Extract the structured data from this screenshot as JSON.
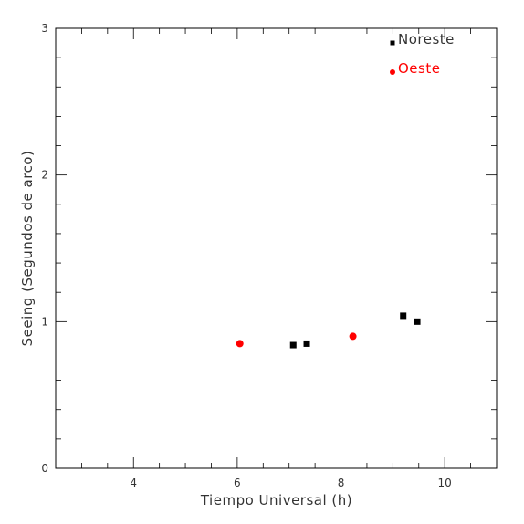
{
  "chart_data": {
    "type": "scatter",
    "title": "",
    "xlabel": "Tiempo Universal (h)",
    "ylabel": "Seeing (Segundos de arco)",
    "xlim": [
      2.5,
      11.0
    ],
    "ylim": [
      0,
      3
    ],
    "xticks": [
      "4",
      "6",
      "8",
      "10"
    ],
    "yticks": [
      "0",
      "1",
      "2",
      "3"
    ],
    "grid": false,
    "legend_position": "top-right",
    "series": [
      {
        "name": "Noreste",
        "marker": "square",
        "color": "#000000",
        "x": [
          7.08,
          7.34,
          9.2,
          9.47
        ],
        "y": [
          0.84,
          0.85,
          1.04,
          1.0
        ]
      },
      {
        "name": "Oeste",
        "marker": "circle",
        "color": "#ff0000",
        "x": [
          6.05,
          8.23
        ],
        "y": [
          0.85,
          0.9
        ]
      }
    ]
  }
}
